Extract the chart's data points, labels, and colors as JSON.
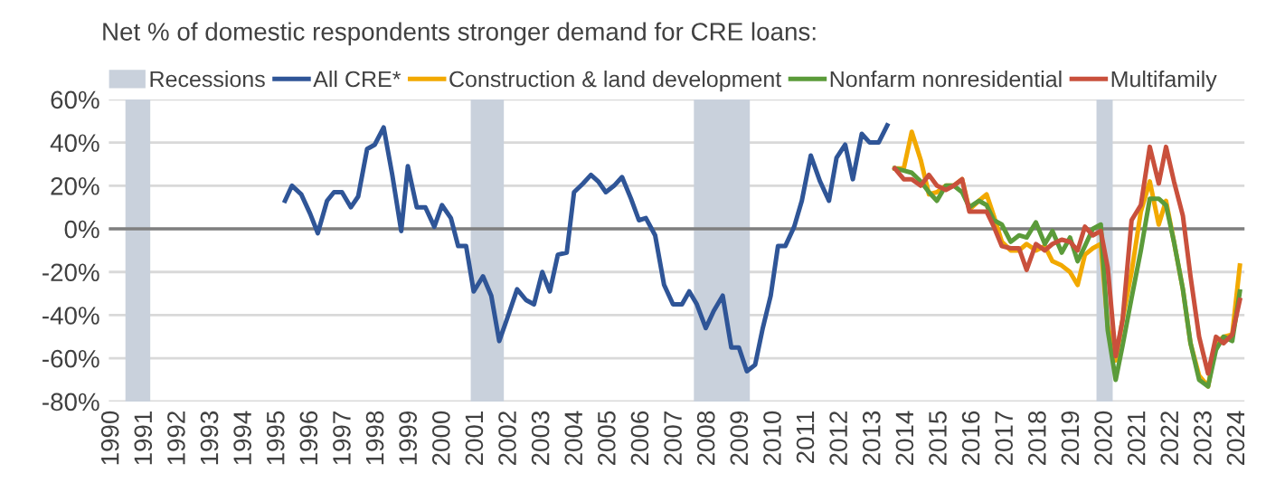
{
  "chart_data": {
    "type": "line",
    "title": "Net % of domestic respondents stronger demand for CRE loans:",
    "series": [
      {
        "name": "All CRE*",
        "color": "#2f5597",
        "x": [
          1995.22,
          1995.43,
          1995.71,
          1995.98,
          1996.21,
          1996.49,
          1996.7,
          1996.94,
          1997.21,
          1997.43,
          1997.7,
          1997.93,
          1998.2,
          1998.46,
          1998.73,
          1998.93,
          1999.2,
          1999.46,
          1999.73,
          1999.96,
          2000.23,
          2000.45,
          2000.69,
          2000.92,
          2001.2,
          2001.45,
          2001.69,
          2001.92,
          2002.23,
          2002.5,
          2002.74,
          2002.99,
          2003.22,
          2003.46,
          2003.73,
          2003.95,
          2004.22,
          2004.46,
          2004.68,
          2004.91,
          2005.16,
          2005.4,
          2005.67,
          2005.91,
          2006.12,
          2006.4,
          2006.67,
          2006.94,
          2007.21,
          2007.43,
          2007.66,
          2007.93,
          2008.17,
          2008.44,
          2008.7,
          2008.93,
          2009.17,
          2009.42,
          2009.65,
          2009.89,
          2010.11,
          2010.33,
          2010.6,
          2010.83,
          2011.1,
          2011.38,
          2011.65,
          2011.88,
          2012.14,
          2012.37,
          2012.64,
          2012.88,
          2013.15,
          2013.41
        ],
        "values": [
          13,
          20,
          16,
          7,
          -2,
          13,
          17,
          17,
          10,
          15,
          37,
          39,
          47,
          25,
          -1,
          29,
          10,
          10,
          1,
          11,
          5,
          -8,
          -8,
          -29,
          -22,
          -31,
          -52,
          -42,
          -28,
          -33,
          -35,
          -20,
          -29,
          -12,
          -11,
          17,
          21,
          25,
          22,
          17,
          20,
          24,
          14,
          4,
          5,
          -3,
          -26,
          -35,
          -35,
          -29,
          -35,
          -46,
          -38,
          -31,
          -55,
          -55,
          -66,
          -63,
          -46,
          -31,
          -8,
          -8,
          1,
          13,
          34,
          22,
          13,
          33,
          39,
          23,
          44,
          40,
          40,
          48
        ]
      },
      {
        "name": "Construction & land development",
        "color": "#f2a900",
        "x": [
          2013.64,
          2013.91,
          2014.15,
          2014.42,
          2014.67,
          2014.91,
          2015.18,
          2015.42,
          2015.67,
          2015.89,
          2016.18,
          2016.41,
          2016.63,
          2016.87,
          2017.14,
          2017.39,
          2017.62,
          2017.9,
          2018.17,
          2018.4,
          2018.68,
          2018.93,
          2019.16,
          2019.38,
          2019.62,
          2019.86,
          2020.07,
          2020.31,
          2020.52,
          2020.79,
          2021.07,
          2021.34,
          2021.61,
          2021.83,
          2022.07,
          2022.34,
          2022.57,
          2022.83,
          2023.1,
          2023.34,
          2023.57,
          2023.83,
          2024.06
        ],
        "values": [
          28,
          28,
          45,
          32,
          16,
          17,
          20,
          20,
          23,
          9,
          13,
          16,
          6,
          -6,
          -10,
          -10,
          -7,
          -10,
          -8,
          -15,
          -17,
          -20,
          -26,
          -12,
          -9,
          -7,
          -45,
          -61,
          -42,
          -20,
          8,
          22,
          2,
          13,
          -6,
          -28,
          -53,
          -68,
          -73,
          -53,
          -50,
          -49,
          -17
        ]
      },
      {
        "name": "Nonfarm nonresidential",
        "color": "#5b9b3a",
        "x": [
          2013.64,
          2013.91,
          2014.15,
          2014.42,
          2014.67,
          2014.91,
          2015.18,
          2015.42,
          2015.67,
          2015.89,
          2016.18,
          2016.41,
          2016.63,
          2016.87,
          2017.14,
          2017.39,
          2017.62,
          2017.9,
          2018.17,
          2018.4,
          2018.68,
          2018.93,
          2019.16,
          2019.38,
          2019.62,
          2019.86,
          2020.07,
          2020.31,
          2020.52,
          2020.79,
          2021.07,
          2021.34,
          2021.61,
          2021.83,
          2022.07,
          2022.34,
          2022.57,
          2022.83,
          2023.1,
          2023.34,
          2023.57,
          2023.83,
          2024.06
        ],
        "values": [
          28,
          27,
          26,
          22,
          17,
          13,
          20,
          20,
          17,
          10,
          13,
          11,
          4,
          2,
          -6,
          -3,
          -4,
          3,
          -7,
          -1,
          -11,
          -4,
          -15,
          -8,
          0,
          2,
          -47,
          -70,
          -54,
          -32,
          -10,
          14,
          14,
          11,
          -6,
          -28,
          -53,
          -70,
          -73,
          -56,
          -50,
          -52,
          -29
        ]
      },
      {
        "name": "Multifamily",
        "color": "#c9503c",
        "x": [
          2013.64,
          2013.91,
          2014.15,
          2014.42,
          2014.67,
          2014.91,
          2015.18,
          2015.42,
          2015.67,
          2015.89,
          2016.18,
          2016.41,
          2016.63,
          2016.87,
          2017.14,
          2017.39,
          2017.62,
          2017.9,
          2018.17,
          2018.4,
          2018.68,
          2018.93,
          2019.16,
          2019.38,
          2019.62,
          2019.86,
          2020.07,
          2020.31,
          2020.52,
          2020.79,
          2021.07,
          2021.34,
          2021.61,
          2021.83,
          2022.07,
          2022.34,
          2022.57,
          2022.83,
          2023.1,
          2023.34,
          2023.57,
          2023.83,
          2024.06
        ],
        "values": [
          28,
          23,
          23,
          20,
          25,
          20,
          18,
          20,
          23,
          8,
          8,
          8,
          1,
          -8,
          -9,
          -9,
          -19,
          -7,
          -10,
          -7,
          -5,
          -6,
          -10,
          1,
          -3,
          -1,
          -18,
          -59,
          -42,
          4,
          11,
          38,
          21,
          38,
          22,
          6,
          -22,
          -50,
          -67,
          -50,
          -53,
          -49,
          -33
        ]
      }
    ],
    "bands": [
      {
        "axis": "x",
        "from": 1990.4,
        "to": 1991.15,
        "label": "Recessions",
        "color": "#c9d1dc"
      },
      {
        "axis": "x",
        "from": 2000.83,
        "to": 2001.83,
        "color": "#c9d1dc"
      },
      {
        "axis": "x",
        "from": 2007.57,
        "to": 2009.26,
        "color": "#c9d1dc"
      },
      {
        "axis": "x",
        "from": 2019.73,
        "to": 2020.22,
        "color": "#c9d1dc"
      }
    ],
    "ref_lines": [
      {
        "axis": "y",
        "value": 0,
        "color": "#7f7f7f",
        "line_style": "solid"
      }
    ],
    "xlim": [
      1989.9,
      2024.2
    ],
    "xticks": [
      1990,
      1991,
      1992,
      1993,
      1994,
      1995,
      1996,
      1997,
      1998,
      1999,
      2000,
      2001,
      2002,
      2003,
      2004,
      2005,
      2006,
      2007,
      2008,
      2009,
      2010,
      2011,
      2012,
      2013,
      2014,
      2015,
      2016,
      2017,
      2018,
      2019,
      2020,
      2021,
      2022,
      2023,
      2024
    ],
    "ylim": [
      -80,
      60
    ],
    "yticks": [
      {
        "value": -80,
        "label": "-80%"
      },
      {
        "value": -60,
        "label": "-60%"
      },
      {
        "value": -40,
        "label": "-40%"
      },
      {
        "value": -20,
        "label": "-20%"
      },
      {
        "value": 0,
        "label": "0%"
      },
      {
        "value": 20,
        "label": "20%"
      },
      {
        "value": 40,
        "label": "40%"
      },
      {
        "value": 60,
        "label": "60%"
      }
    ],
    "grid": "y",
    "legend": "top",
    "marker": "none",
    "line_style": "solid"
  }
}
